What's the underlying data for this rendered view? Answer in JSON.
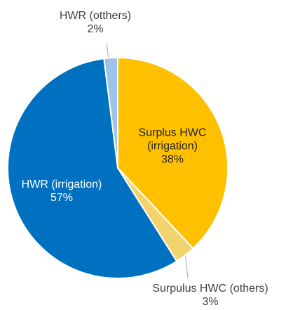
{
  "chart_data": {
    "type": "pie",
    "categories": [
      "Surplus HWC (irrigation)",
      "Surpulus HWC (others)",
      "HWR (irrigation)",
      "HWR (otthers)"
    ],
    "values": [
      38,
      3,
      57,
      2
    ],
    "value_labels": [
      "38%",
      "3%",
      "57%",
      "2%"
    ],
    "colors": [
      "#ffc000",
      "#f2d36e",
      "#0070c0",
      "#9dc3e6"
    ]
  }
}
